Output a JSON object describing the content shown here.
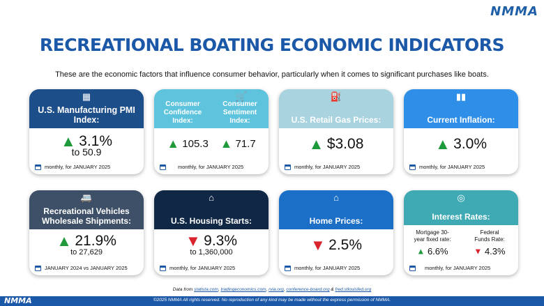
{
  "brand": {
    "logo": "NMMA"
  },
  "title": "RECREATIONAL BOATING ECONOMIC INDICATORS",
  "subtitle": "These are the economic factors that influence consumer behavior, particularly when it comes to significant purchases like boats.",
  "colors": {
    "navy": "#1c4e8a",
    "light_blue": "#5ec3dd",
    "pale_blue": "#a9d3df",
    "bright_blue": "#2e8ee8",
    "slate": "#3e5068",
    "dark_navy": "#102746",
    "royal_blue": "#1b6fc7",
    "teal": "#3faab4",
    "up": "#1f9a3a",
    "down": "#d9232d"
  },
  "cards": {
    "pmi": {
      "label": "U.S. Manufacturing PMI Index:",
      "icon": "factory-icon",
      "direction": "up",
      "value": "3.1%",
      "sub": "to 50.9",
      "footnote": "monthly, for JANUARY 2025"
    },
    "confidence": {
      "left_label": "Consumer Confidence Index:",
      "left_value": "105.3",
      "right_label": "Consumer Sentiment Index:",
      "right_value": "71.7",
      "icon": "cart-icon",
      "footnote": "monthly, for JANUARY 2025"
    },
    "gas": {
      "label": "U.S. Retail Gas Prices:",
      "icon": "gas-pump-icon",
      "direction": "up",
      "value": "$3.08",
      "footnote": "monthly, for  JANUARY 2025"
    },
    "inflation": {
      "label": "Current Inflation:",
      "icon": "bar-chart-icon",
      "direction": "up",
      "value": "3.0%",
      "footnote": "monthly, for JANUARY 2025"
    },
    "rv": {
      "label": "Recreational Vehicles Wholesale Shipments:",
      "icon": "rv-icon",
      "direction": "up",
      "value": "21.9%",
      "sub": "to 27,629",
      "footnote": "JANUARY 2024 vs JANUARY 2025"
    },
    "housing": {
      "label": "U.S. Housing Starts:",
      "icon": "house-percent-icon",
      "direction": "down",
      "value": "9.3%",
      "sub": "to 1,360,000",
      "footnote": "monthly, for JANUARY 2025"
    },
    "home": {
      "label": "Home Prices:",
      "icon": "house-dollar-icon",
      "direction": "down",
      "value": "2.5%",
      "footnote": "monthly, for JANUARY 2025"
    },
    "rates": {
      "label": "Interest Rates:",
      "icon": "coin-icon",
      "left_label": "Mortgage 30-year fixed rate:",
      "left_value": "6.6%",
      "right_label": "Federal Funds Rate:",
      "right_value": "4.3%",
      "footnote": "monthly, for JANUARY 2025"
    }
  },
  "footer": {
    "data_prefix": "Data from ",
    "sources": [
      "statista.com",
      "tradingeconomics.com",
      "rvia.org",
      "conference-board.org",
      "fred.stlouisfed.org"
    ],
    "copyright": "©2025 NMMA All rights reserved. No reproduction of any kind may be made without the express permission of NMMA."
  }
}
